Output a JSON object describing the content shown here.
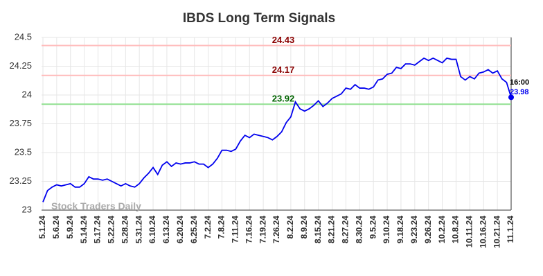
{
  "chart_data": {
    "type": "line",
    "title": "IBDS Long Term Signals",
    "categories": [
      "5.1.24",
      null,
      null,
      "5.6.24",
      null,
      null,
      "5.9.24",
      null,
      null,
      "5.14.24",
      null,
      null,
      "5.17.24",
      null,
      null,
      "5.22.24",
      null,
      null,
      "5.28.24",
      null,
      null,
      "5.31.24",
      null,
      null,
      "6.10.24",
      null,
      null,
      "6.13.24",
      null,
      null,
      "6.20.24",
      null,
      null,
      "6.25.24",
      null,
      null,
      "7.2.24",
      null,
      null,
      "7.8.24",
      null,
      null,
      "7.11.24",
      null,
      null,
      "7.16.24",
      null,
      null,
      "7.19.24",
      null,
      null,
      "7.26.24",
      null,
      null,
      "8.2.24",
      null,
      null,
      "8.9.24",
      null,
      null,
      "8.15.24",
      null,
      null,
      "8.21.24",
      null,
      null,
      "8.27.24",
      null,
      null,
      "8.30.24",
      null,
      null,
      "9.5.24",
      null,
      null,
      "9.10.24",
      null,
      null,
      "9.18.24",
      null,
      null,
      "9.23.24",
      null,
      null,
      "9.26.24",
      null,
      null,
      "10.2.24",
      null,
      null,
      "10.8.24",
      null,
      null,
      "10.11.24",
      null,
      null,
      "10.16.24",
      null,
      null,
      "10.21.24",
      null,
      null,
      "11.1.24"
    ],
    "values": [
      23.07,
      23.17,
      23.2,
      23.22,
      23.21,
      23.22,
      23.23,
      23.2,
      23.2,
      23.23,
      23.29,
      23.27,
      23.27,
      23.26,
      23.27,
      23.25,
      23.23,
      23.21,
      23.23,
      23.21,
      23.2,
      23.23,
      23.28,
      23.32,
      23.37,
      23.31,
      23.39,
      23.42,
      23.38,
      23.41,
      23.4,
      23.41,
      23.41,
      23.42,
      23.4,
      23.4,
      23.37,
      23.4,
      23.45,
      23.52,
      23.52,
      23.51,
      23.53,
      23.6,
      23.65,
      23.63,
      23.66,
      23.65,
      23.64,
      23.63,
      23.61,
      23.64,
      23.68,
      23.76,
      23.81,
      23.94,
      23.88,
      23.86,
      23.88,
      23.91,
      23.95,
      23.9,
      23.93,
      23.97,
      23.99,
      24.01,
      24.06,
      24.05,
      24.09,
      24.06,
      24.06,
      24.05,
      24.07,
      24.13,
      24.14,
      24.18,
      24.19,
      24.24,
      24.23,
      24.27,
      24.27,
      24.26,
      24.29,
      24.32,
      24.3,
      24.32,
      24.3,
      24.28,
      24.32,
      24.31,
      24.31,
      24.16,
      24.13,
      24.16,
      24.14,
      24.19,
      24.2,
      24.22,
      24.19,
      24.21,
      24.14,
      24.11,
      23.98
    ],
    "color": "#0000ee",
    "ylim": [
      23,
      24.5
    ],
    "yticks": [
      23,
      23.25,
      23.5,
      23.75,
      24,
      24.25,
      24.5
    ],
    "grid": true,
    "reference_lines": [
      {
        "value": 24.43,
        "color": "#ffbbbb",
        "label_color": "#8b0000"
      },
      {
        "value": 24.17,
        "color": "#ffbbbb",
        "label_color": "#8b0000"
      },
      {
        "value": 23.92,
        "color": "#90e090",
        "label_color": "#006400"
      }
    ],
    "last_label": "16:00",
    "watermark": "Stock Traders Daily"
  }
}
